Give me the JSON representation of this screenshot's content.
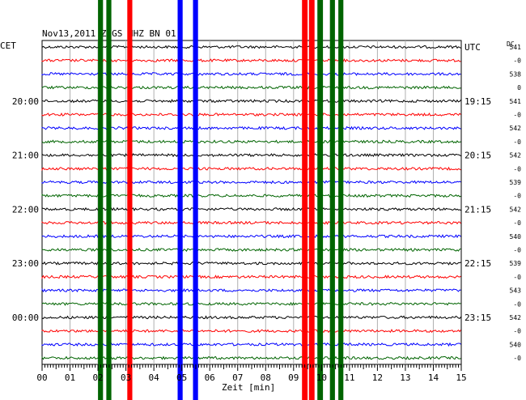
{
  "chart_data": {
    "type": "line",
    "title": "Nov13,2011  ZUGS HHZ BN 01",
    "left_tz": "CET",
    "right_tz": "UTC",
    "dc_label": "DC",
    "xlabel": "Zeit [min]",
    "xlim": [
      0,
      15
    ],
    "x_ticks": [
      "00",
      "01",
      "02",
      "03",
      "04",
      "05",
      "06",
      "07",
      "08",
      "09",
      "10",
      "11",
      "12",
      "13",
      "14",
      "15"
    ],
    "trace_count": 24,
    "trace_colors": [
      "#000000",
      "#ff0000",
      "#0000ff",
      "#006400"
    ],
    "left_time_labels": [
      {
        "trace": 4,
        "label": "20:00"
      },
      {
        "trace": 8,
        "label": "21:00"
      },
      {
        "trace": 12,
        "label": "22:00"
      },
      {
        "trace": 16,
        "label": "23:00"
      },
      {
        "trace": 20,
        "label": "00:00"
      }
    ],
    "right_time_labels": [
      {
        "trace": 0,
        "label": "UTC"
      },
      {
        "trace": 4,
        "label": "19:15"
      },
      {
        "trace": 8,
        "label": "20:15"
      },
      {
        "trace": 12,
        "label": "21:15"
      },
      {
        "trace": 16,
        "label": "22:15"
      },
      {
        "trace": 20,
        "label": "23:15"
      }
    ],
    "dc_values": [
      "541",
      "-0",
      "538",
      "0",
      "541",
      "-0",
      "542",
      "-0",
      "542",
      "-0",
      "539",
      "-0",
      "542",
      "-0",
      "540",
      "-0",
      "539",
      "-0",
      "543",
      "-0",
      "542",
      "-0",
      "540",
      "-0"
    ],
    "clipped_bursts": [
      {
        "color": "#006400",
        "x_min": 2.0,
        "width_min": 0.18
      },
      {
        "color": "#006400",
        "x_min": 2.3,
        "width_min": 0.18
      },
      {
        "color": "#ff0000",
        "x_min": 3.05,
        "width_min": 0.18
      },
      {
        "color": "#0000ff",
        "x_min": 4.85,
        "width_min": 0.18
      },
      {
        "color": "#0000ff",
        "x_min": 5.4,
        "width_min": 0.18
      },
      {
        "color": "#ff0000",
        "x_min": 9.3,
        "width_min": 0.2
      },
      {
        "color": "#ff0000",
        "x_min": 9.55,
        "width_min": 0.2
      },
      {
        "color": "#006400",
        "x_min": 9.85,
        "width_min": 0.2
      },
      {
        "color": "#006400",
        "x_min": 10.3,
        "width_min": 0.18
      },
      {
        "color": "#006400",
        "x_min": 10.6,
        "width_min": 0.18
      }
    ]
  }
}
